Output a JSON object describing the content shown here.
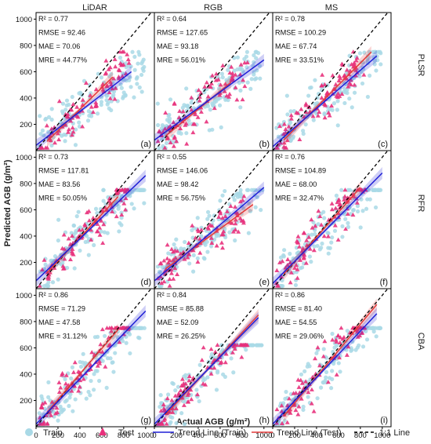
{
  "figure": {
    "columns": [
      "LiDAR",
      "RGB",
      "MS"
    ],
    "rows": [
      "PLSR",
      "RFR",
      "CBA"
    ],
    "xlabel": "Actual AGB (g/m²)",
    "ylabel": "Predicted AGB (g/m²)",
    "x_ticks": [
      "0",
      "200",
      "400",
      "600",
      "800",
      "1000"
    ],
    "y_ticks": [
      "200",
      "400",
      "600",
      "800",
      "1000"
    ],
    "legend": {
      "train": "Train",
      "test": "Test",
      "trend_train": "Trend Line (Train)",
      "trend_test": "Trend Line (Test)",
      "one_to_one": "1:1 Line"
    },
    "colors": {
      "train": "#a9d9e6",
      "test": "#e8317c",
      "trend_train": "#1f1fd6",
      "trend_test": "#e33a3a",
      "one_to_one": "#000000"
    }
  },
  "chart_data": [
    {
      "type": "scatter",
      "panel": "(a)",
      "model": "PLSR",
      "sensor": "LiDAR",
      "stats": [
        "R²  = 0.77",
        "RMSE = 92.46",
        "MAE  = 70.06",
        "MRE  = 44.77%"
      ],
      "xlim": [
        0,
        1080
      ],
      "ylim": [
        0,
        1050
      ],
      "trend_train": {
        "x": [
          0,
          870
        ],
        "y": [
          40,
          600
        ]
      },
      "trend_test": {
        "x": [
          100,
          700
        ],
        "y": [
          70,
          560
        ]
      }
    },
    {
      "type": "scatter",
      "panel": "(b)",
      "model": "PLSR",
      "sensor": "RGB",
      "stats": [
        "R²  = 0.64",
        "RMSE = 127.65",
        "MAE  = 93.18",
        "MRE  = 56.01%"
      ],
      "xlim": [
        0,
        1080
      ],
      "ylim": [
        0,
        1050
      ],
      "trend_train": {
        "x": [
          0,
          1000
        ],
        "y": [
          80,
          690
        ]
      },
      "trend_test": {
        "x": [
          100,
          700
        ],
        "y": [
          110,
          520
        ]
      }
    },
    {
      "type": "scatter",
      "panel": "(c)",
      "model": "PLSR",
      "sensor": "MS",
      "stats": [
        "R²  = 0.78",
        "RMSE = 100.29",
        "MAE  = 67.74",
        "MRE  = 33.51%"
      ],
      "xlim": [
        0,
        1080
      ],
      "ylim": [
        0,
        1050
      ],
      "trend_train": {
        "x": [
          0,
          950
        ],
        "y": [
          30,
          720
        ]
      },
      "trend_test": {
        "x": [
          100,
          900
        ],
        "y": [
          80,
          750
        ]
      }
    },
    {
      "type": "scatter",
      "panel": "(d)",
      "model": "RFR",
      "sensor": "LiDAR",
      "stats": [
        "R²  = 0.73",
        "RMSE = 117.81",
        "MAE  = 83.56",
        "MRE  = 50.05%"
      ],
      "xlim": [
        0,
        1080
      ],
      "ylim": [
        0,
        1050
      ],
      "trend_train": {
        "x": [
          0,
          1000
        ],
        "y": [
          60,
          860
        ]
      },
      "trend_test": {
        "x": [
          100,
          750
        ],
        "y": [
          120,
          700
        ]
      }
    },
    {
      "type": "scatter",
      "panel": "(e)",
      "model": "RFR",
      "sensor": "RGB",
      "stats": [
        "R²  = 0.55",
        "RMSE = 146.06",
        "MAE  = 98.42",
        "MRE  = 56.75%"
      ],
      "xlim": [
        0,
        1080
      ],
      "ylim": [
        0,
        1050
      ],
      "trend_train": {
        "x": [
          0,
          1000
        ],
        "y": [
          60,
          770
        ]
      },
      "trend_test": {
        "x": [
          100,
          900
        ],
        "y": [
          150,
          640
        ]
      }
    },
    {
      "type": "scatter",
      "panel": "(f)",
      "model": "RFR",
      "sensor": "MS",
      "stats": [
        "R²  = 0.76",
        "RMSE = 104.89",
        "MAE  = 68.00",
        "MRE  = 32.47%"
      ],
      "xlim": [
        0,
        1080
      ],
      "ylim": [
        0,
        1050
      ],
      "trend_train": {
        "x": [
          0,
          1000
        ],
        "y": [
          40,
          880
        ]
      },
      "trend_test": {
        "x": [
          100,
          800
        ],
        "y": [
          110,
          770
        ]
      }
    },
    {
      "type": "scatter",
      "panel": "(g)",
      "model": "CBA",
      "sensor": "LiDAR",
      "stats": [
        "R²  = 0.86",
        "RMSE = 71.29",
        "MAE  = 47.58",
        "MRE  = 31.12%"
      ],
      "xlim": [
        0,
        1080
      ],
      "ylim": [
        0,
        1050
      ],
      "trend_train": {
        "x": [
          0,
          1000
        ],
        "y": [
          20,
          880
        ]
      },
      "trend_test": {
        "x": [
          100,
          750
        ],
        "y": [
          110,
          740
        ]
      }
    },
    {
      "type": "scatter",
      "panel": "(h)",
      "model": "CBA",
      "sensor": "RGB",
      "stats": [
        "R²  = 0.84",
        "RMSE = 85.88",
        "MAE  = 52.09",
        "MRE  = 26.25%"
      ],
      "xlim": [
        0,
        1080
      ],
      "ylim": [
        0,
        1050
      ],
      "trend_train": {
        "x": [
          0,
          950
        ],
        "y": [
          20,
          830
        ]
      },
      "trend_test": {
        "x": [
          100,
          950
        ],
        "y": [
          90,
          850
        ]
      }
    },
    {
      "type": "scatter",
      "panel": "(i)",
      "model": "CBA",
      "sensor": "MS",
      "stats": [
        "R²  = 0.86",
        "RMSE = 81.40",
        "MAE  = 54.55",
        "MRE  = 29.06%"
      ],
      "xlim": [
        0,
        1080
      ],
      "ylim": [
        0,
        1050
      ],
      "trend_train": {
        "x": [
          0,
          950
        ],
        "y": [
          20,
          860
        ]
      },
      "trend_test": {
        "x": [
          100,
          950
        ],
        "y": [
          80,
          930
        ]
      }
    }
  ]
}
